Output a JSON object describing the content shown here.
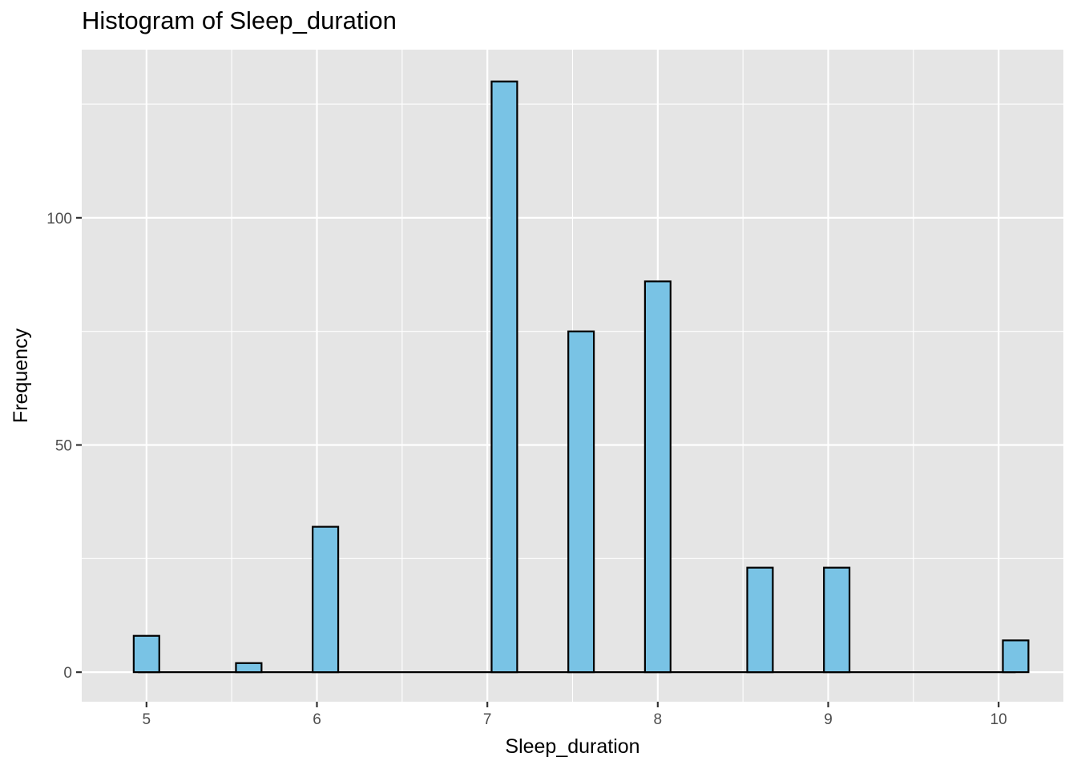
{
  "chart_data": {
    "type": "bar",
    "title": "Histogram of Sleep_duration",
    "xlabel": "Sleep_duration",
    "ylabel": "Frequency",
    "x_ticks": [
      5,
      6,
      7,
      8,
      9,
      10
    ],
    "y_ticks": [
      0,
      50,
      100
    ],
    "xlim": [
      4.62,
      10.38
    ],
    "ylim": [
      -6.5,
      137
    ],
    "bin_width": 0.15,
    "bins": [
      {
        "x": 5.0,
        "count": 8
      },
      {
        "x": 5.6,
        "count": 2
      },
      {
        "x": 6.05,
        "count": 32
      },
      {
        "x": 7.1,
        "count": 130
      },
      {
        "x": 7.55,
        "count": 75
      },
      {
        "x": 8.0,
        "count": 86
      },
      {
        "x": 8.6,
        "count": 23
      },
      {
        "x": 9.05,
        "count": 23
      },
      {
        "x": 10.1,
        "count": 7
      }
    ],
    "x_range_bins": [
      4.95,
      10.1
    ],
    "fill_color": "#79C3E5",
    "edge_color": "#000000",
    "panel_color": "#E5E5E5",
    "grid": true
  }
}
